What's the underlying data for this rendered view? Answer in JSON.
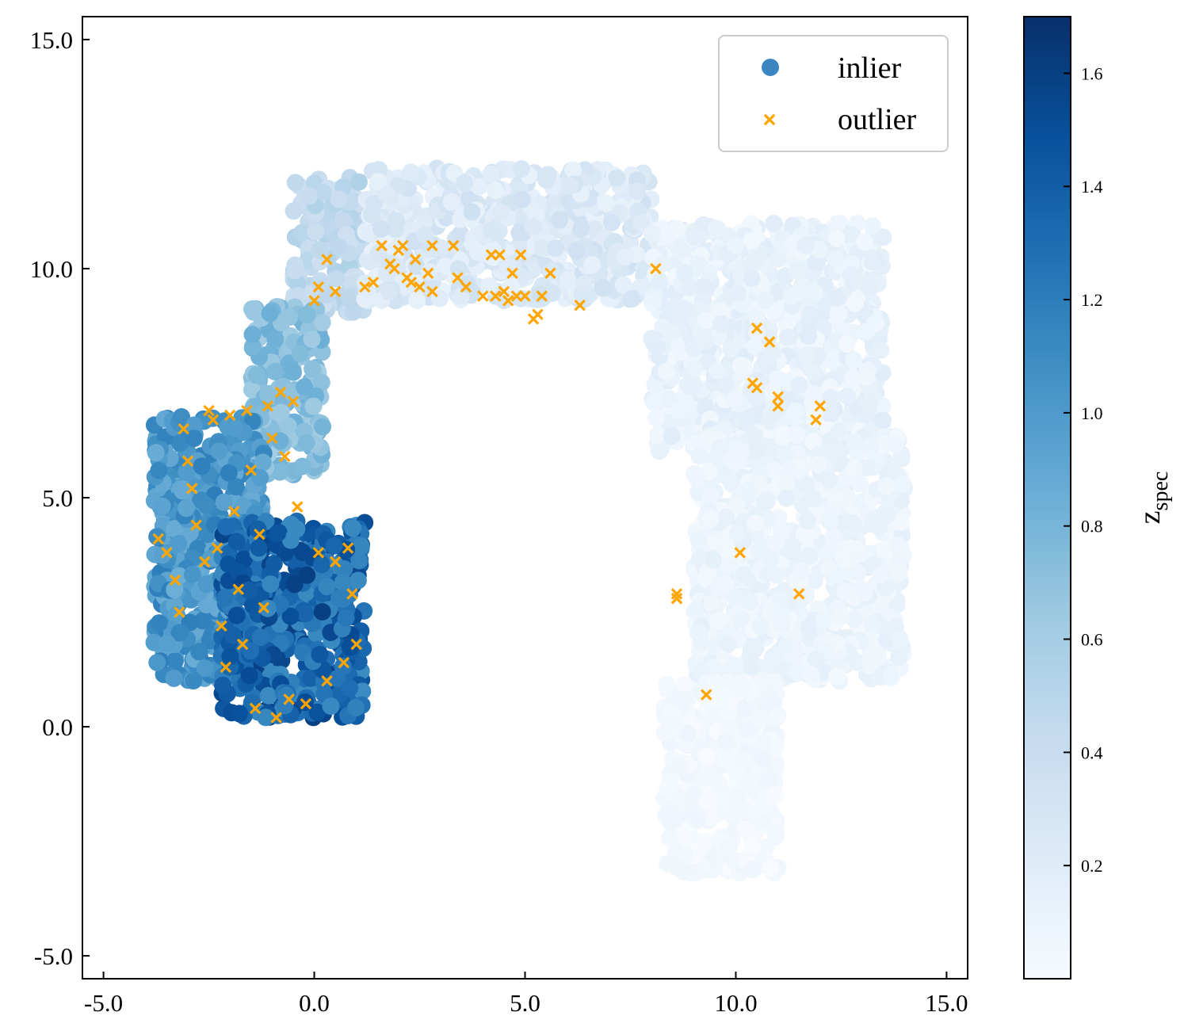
{
  "chart_data": {
    "type": "scatter",
    "title": "",
    "xlabel": "",
    "ylabel": "",
    "xlim": [
      -5.5,
      15.5
    ],
    "ylim": [
      -5.5,
      15.5
    ],
    "xticks": [
      -5.0,
      0.0,
      5.0,
      10.0,
      15.0
    ],
    "yticks": [
      -5.0,
      0.0,
      5.0,
      10.0,
      15.0
    ],
    "xtick_labels": [
      "-5.0",
      "0.0",
      "5.0",
      "10.0",
      "15.0"
    ],
    "ytick_labels": [
      "-5.0",
      "0.0",
      "5.0",
      "10.0",
      "15.0"
    ],
    "grid": false,
    "legend": {
      "position": "top-right",
      "entries": [
        {
          "label": "inlier",
          "marker": "circle",
          "color": "#3b86c0"
        },
        {
          "label": "outlier",
          "marker": "x",
          "color": "#ffa500"
        }
      ]
    },
    "colorbar": {
      "label_main": "z",
      "label_sub": "spec",
      "range": [
        0.0,
        1.7
      ],
      "ticks": [
        0.2,
        0.4,
        0.6,
        0.8,
        1.0,
        1.2,
        1.4,
        1.6
      ],
      "tick_labels": [
        "0.2",
        "0.4",
        "0.6",
        "0.8",
        "1.0",
        "1.2",
        "1.4",
        "1.6"
      ],
      "colormap": "Blues",
      "stops": [
        "#f7fbff",
        "#deebf7",
        "#c6dbef",
        "#9ecae1",
        "#6baed6",
        "#4292c6",
        "#2171b5",
        "#08519c",
        "#08306b"
      ]
    },
    "inlier_regions": [
      {
        "name": "arc-left",
        "x": [
          -0.5,
          1.2
        ],
        "y": [
          9.0,
          12.0
        ],
        "z": [
          0.35,
          0.55
        ]
      },
      {
        "name": "arc-top",
        "x": [
          1.2,
          8.0
        ],
        "y": [
          9.3,
          12.2
        ],
        "z": [
          0.12,
          0.35
        ]
      },
      {
        "name": "arc-right-top",
        "x": [
          8.0,
          13.5
        ],
        "y": [
          6.0,
          11.0
        ],
        "z": [
          0.05,
          0.2
        ]
      },
      {
        "name": "right-limb",
        "x": [
          9.0,
          14.0
        ],
        "y": [
          1.0,
          6.5
        ],
        "z": [
          0.04,
          0.15
        ]
      },
      {
        "name": "right-limb-bottom",
        "x": [
          8.3,
          11.0
        ],
        "y": [
          -3.2,
          1.0
        ],
        "z": [
          0.0,
          0.08
        ]
      },
      {
        "name": "neck",
        "x": [
          -1.5,
          0.2
        ],
        "y": [
          5.5,
          9.2
        ],
        "z": [
          0.6,
          0.85
        ]
      },
      {
        "name": "blob-outer",
        "x": [
          -3.8,
          -1.2
        ],
        "y": [
          1.0,
          6.8
        ],
        "z": [
          0.85,
          1.2
        ]
      },
      {
        "name": "blob-core",
        "x": [
          -2.2,
          1.2
        ],
        "y": [
          0.2,
          4.5
        ],
        "z": [
          1.1,
          1.6
        ]
      }
    ],
    "outliers": [
      [
        -3.7,
        4.1
      ],
      [
        -3.5,
        3.8
      ],
      [
        -3.3,
        3.2
      ],
      [
        -3.2,
        2.5
      ],
      [
        -3.1,
        6.5
      ],
      [
        -3.0,
        5.8
      ],
      [
        -2.9,
        5.2
      ],
      [
        -2.8,
        4.4
      ],
      [
        -2.6,
        3.6
      ],
      [
        -2.5,
        6.9
      ],
      [
        -2.4,
        6.7
      ],
      [
        -2.3,
        3.9
      ],
      [
        -2.2,
        2.2
      ],
      [
        -2.1,
        1.3
      ],
      [
        -2.0,
        6.8
      ],
      [
        -1.9,
        4.7
      ],
      [
        -1.8,
        3.0
      ],
      [
        -1.7,
        1.8
      ],
      [
        -1.6,
        6.9
      ],
      [
        -1.5,
        5.6
      ],
      [
        -1.4,
        0.4
      ],
      [
        -1.3,
        4.2
      ],
      [
        -1.2,
        2.6
      ],
      [
        -1.1,
        7.0
      ],
      [
        -1.0,
        6.3
      ],
      [
        -0.9,
        0.2
      ],
      [
        -0.8,
        7.3
      ],
      [
        -0.7,
        5.9
      ],
      [
        -0.6,
        0.6
      ],
      [
        -0.5,
        7.1
      ],
      [
        -0.4,
        4.8
      ],
      [
        -0.2,
        0.5
      ],
      [
        0.1,
        3.8
      ],
      [
        0.3,
        1.0
      ],
      [
        0.5,
        3.6
      ],
      [
        0.7,
        1.4
      ],
      [
        0.8,
        3.9
      ],
      [
        0.9,
        2.9
      ],
      [
        1.0,
        1.8
      ],
      [
        0.0,
        9.3
      ],
      [
        0.1,
        9.6
      ],
      [
        0.3,
        10.2
      ],
      [
        0.5,
        9.5
      ],
      [
        1.2,
        9.6
      ],
      [
        1.4,
        9.7
      ],
      [
        1.6,
        10.5
      ],
      [
        1.8,
        10.1
      ],
      [
        1.9,
        10.0
      ],
      [
        2.0,
        10.4
      ],
      [
        2.1,
        10.5
      ],
      [
        2.2,
        9.8
      ],
      [
        2.3,
        9.7
      ],
      [
        2.4,
        10.2
      ],
      [
        2.5,
        9.6
      ],
      [
        2.7,
        9.9
      ],
      [
        2.8,
        10.5
      ],
      [
        2.8,
        9.5
      ],
      [
        3.3,
        10.5
      ],
      [
        3.4,
        9.8
      ],
      [
        3.6,
        9.6
      ],
      [
        4.0,
        9.4
      ],
      [
        4.2,
        10.3
      ],
      [
        4.3,
        9.4
      ],
      [
        4.4,
        10.3
      ],
      [
        4.5,
        9.5
      ],
      [
        4.6,
        9.3
      ],
      [
        4.7,
        9.9
      ],
      [
        4.8,
        9.4
      ],
      [
        4.9,
        10.3
      ],
      [
        5.0,
        9.4
      ],
      [
        5.2,
        8.9
      ],
      [
        5.3,
        9.0
      ],
      [
        5.4,
        9.4
      ],
      [
        5.6,
        9.9
      ],
      [
        6.3,
        9.2
      ],
      [
        8.1,
        10.0
      ],
      [
        10.5,
        8.7
      ],
      [
        10.8,
        8.4
      ],
      [
        10.4,
        7.5
      ],
      [
        10.5,
        7.4
      ],
      [
        11.0,
        7.2
      ],
      [
        11.0,
        7.0
      ],
      [
        11.9,
        6.7
      ],
      [
        12.0,
        7.0
      ],
      [
        10.1,
        3.8
      ],
      [
        11.5,
        2.9
      ],
      [
        8.6,
        2.8
      ],
      [
        8.6,
        2.9
      ],
      [
        9.3,
        0.7
      ]
    ]
  }
}
